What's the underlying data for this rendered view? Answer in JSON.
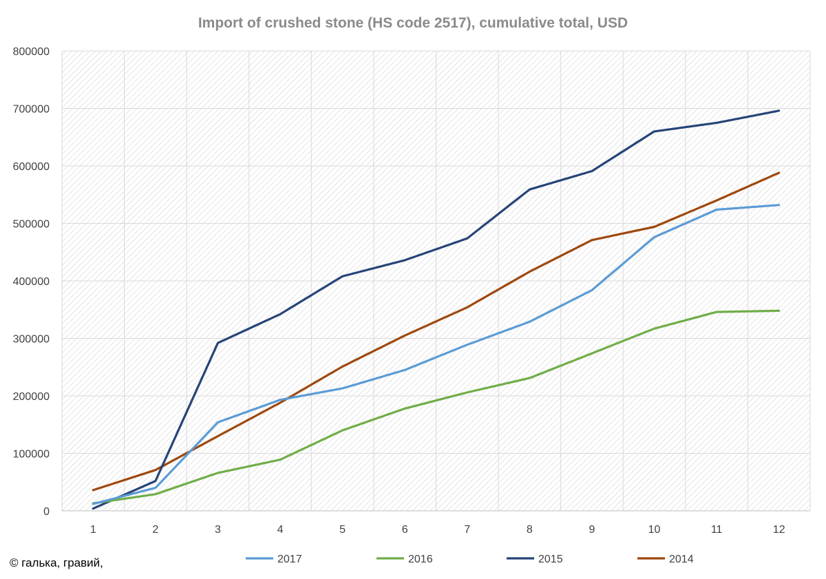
{
  "chart_data": {
    "type": "line",
    "title": "Import of crushed stone (HS code 2517), cumulative total, USD",
    "xlabel": "",
    "ylabel": "",
    "x": [
      1,
      2,
      3,
      4,
      5,
      6,
      7,
      8,
      9,
      10,
      11,
      12
    ],
    "ylim": [
      0,
      800000
    ],
    "yticks": [
      0,
      100000,
      200000,
      300000,
      400000,
      500000,
      600000,
      700000,
      800000
    ],
    "grid": true,
    "legend_position": "bottom",
    "series": [
      {
        "name": "2017",
        "color": "#5b9bd5",
        "values": [
          12000,
          40000,
          154000,
          193000,
          213000,
          245000,
          289000,
          329000,
          384000,
          476000,
          524000,
          532000
        ]
      },
      {
        "name": "2016",
        "color": "#70ad47",
        "values": [
          13000,
          29000,
          66000,
          89000,
          140000,
          178000,
          206000,
          231000,
          274000,
          317000,
          346000,
          348000
        ]
      },
      {
        "name": "2015",
        "color": "#264478",
        "values": [
          4000,
          52000,
          292000,
          342000,
          408000,
          436000,
          474000,
          559000,
          591000,
          660000,
          675000,
          696000
        ]
      },
      {
        "name": "2014",
        "color": "#9e480e",
        "values": [
          36000,
          71000,
          130000,
          188000,
          251000,
          305000,
          354000,
          416000,
          471000,
          494000,
          540000,
          588000
        ]
      }
    ]
  },
  "footer": {
    "note": "© галька, гравий,"
  }
}
